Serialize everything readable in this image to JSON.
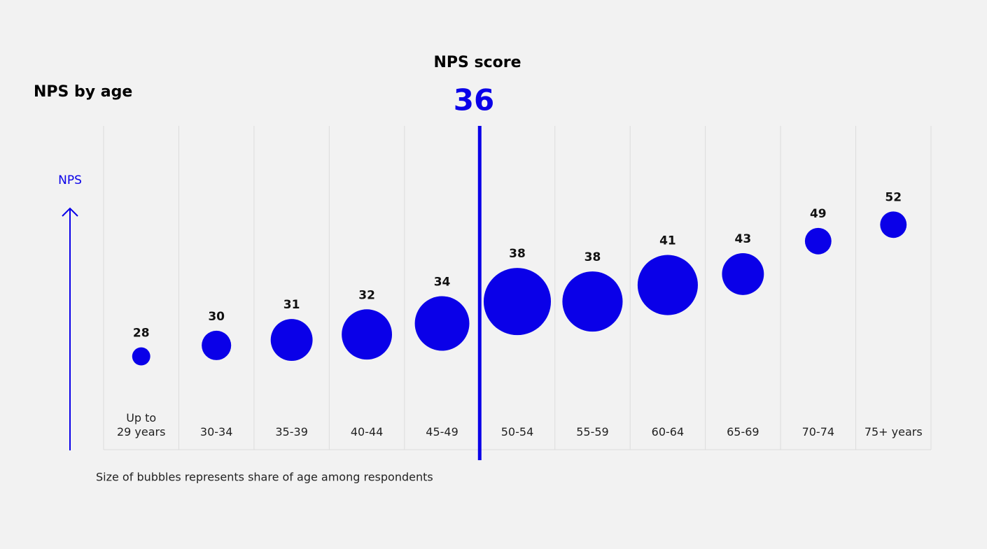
{
  "chart_data": {
    "type": "bubble",
    "title": "NPS by age",
    "y_label": "NPS",
    "note": "Size of bubbles represents share of age among respondents",
    "categories": [
      "Up to\n29 years",
      "30-34",
      "35-39",
      "40-44",
      "45-49",
      "50-54",
      "55-59",
      "60-64",
      "65-69",
      "70-74",
      "75+ years"
    ],
    "series": [
      {
        "name": "NPS",
        "color": "#0a00e8",
        "values": [
          28,
          30,
          31,
          32,
          34,
          38,
          38,
          41,
          43,
          49,
          52
        ],
        "sizes": [
          1.4,
          3.7,
          7.5,
          10.8,
          12.7,
          19.3,
          15.5,
          15.5,
          7.5,
          3.0,
          3.0
        ]
      }
    ],
    "ylim": [
      11,
      70
    ],
    "reference": {
      "label": "NPS score",
      "value": 36
    }
  }
}
